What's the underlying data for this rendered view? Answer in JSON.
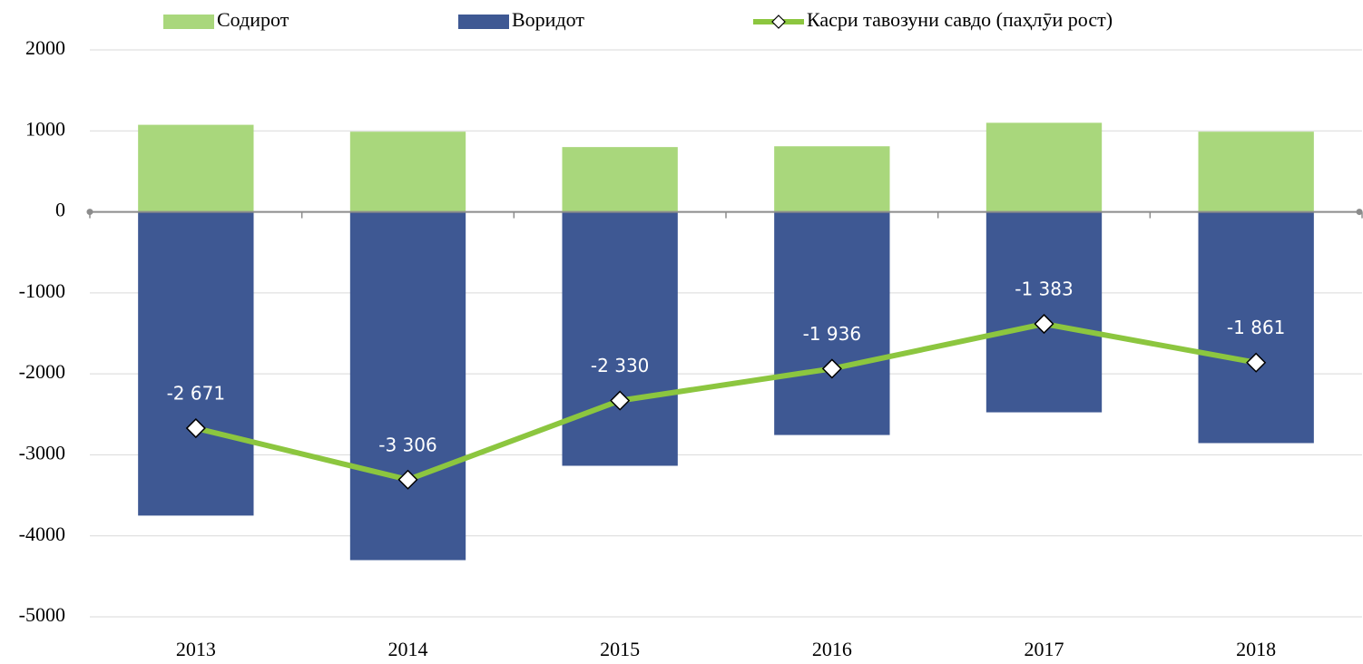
{
  "chart_data": {
    "type": "bar",
    "categories": [
      "2013",
      "2014",
      "2015",
      "2016",
      "2017",
      "2018"
    ],
    "series": [
      {
        "name": "Содирот",
        "type": "bar",
        "color": "#a9d77c",
        "values": [
          1075,
          990,
          800,
          810,
          1100,
          990
        ]
      },
      {
        "name": "Воридот",
        "type": "bar",
        "color": "#3e5893",
        "values": [
          -3750,
          -4300,
          -3135,
          -2755,
          -2475,
          -2855
        ]
      },
      {
        "name": "Касри тавозуни савдо (паҳлӯи рост)",
        "type": "line",
        "color": "#8cc63f",
        "marker_fill": "#ffffff",
        "values": [
          -2671,
          -3306,
          -2330,
          -1936,
          -1383,
          -1861
        ],
        "value_labels": [
          "-2 671",
          "-3 306",
          "-2 330",
          "-1 936",
          "-1 383",
          "-1 861"
        ]
      }
    ],
    "ylim": [
      -5000,
      2000
    ],
    "yticks": [
      -5000,
      -4000,
      -3000,
      -2000,
      -1000,
      0,
      1000,
      2000
    ],
    "grid": true,
    "legend": "top"
  }
}
